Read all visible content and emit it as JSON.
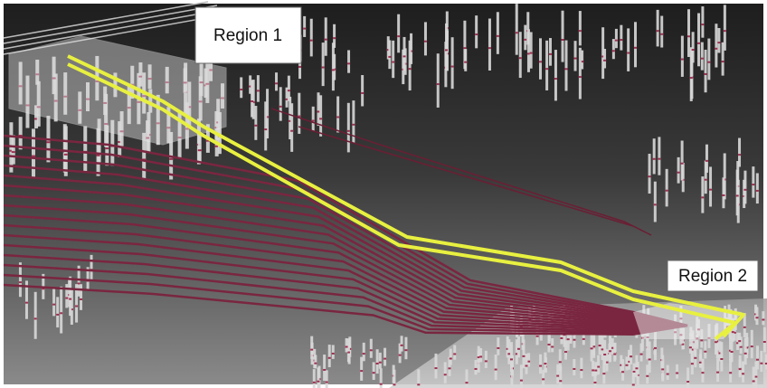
{
  "labels": {
    "region1": "Region 1",
    "region2": "Region 2"
  }
}
